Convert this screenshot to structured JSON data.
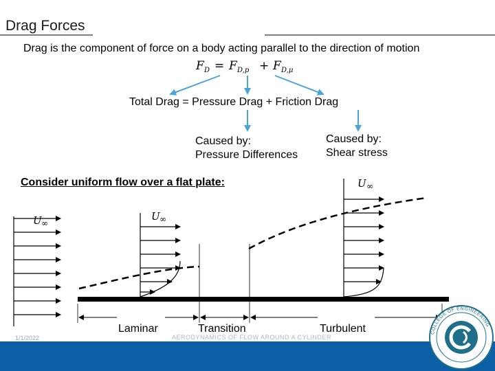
{
  "slide": {
    "title": "Drag Forces",
    "subtitle": "Drag is the component of force on a body acting parallel to the direction of motion",
    "total_equation": "Total Drag = Pressure Drag + Friction Drag",
    "pressure_cause_line1": "Caused by:",
    "pressure_cause_line2": "Pressure Differences",
    "friction_cause_line1": "Caused by:",
    "friction_cause_line2": "Shear stress",
    "consider": "Consider uniform flow over a flat plate:"
  },
  "formula": {
    "lhs": "F",
    "lhs_sub": "D",
    "eq": "=",
    "t1": "F",
    "t1_sub": "D,p",
    "plus": "+",
    "t2": "F",
    "t2_sub": "D,μ"
  },
  "figure": {
    "u_inf": "U",
    "u_inf_sub": "∞",
    "regions": {
      "laminar": "Laminar",
      "transition": "Transition",
      "turbulent": "Turbulent"
    }
  },
  "footer": {
    "date": "1/1/2022",
    "text": "AERODYNAMICS OF FLOW AROUND A CYLINDER",
    "logo_text": "COLLEGE OF ENGINEERING"
  },
  "colors": {
    "arrow_blue": "#4ba3d6",
    "footer_blue": "#0b5fa5",
    "logo_teal": "#1f6f8b"
  }
}
